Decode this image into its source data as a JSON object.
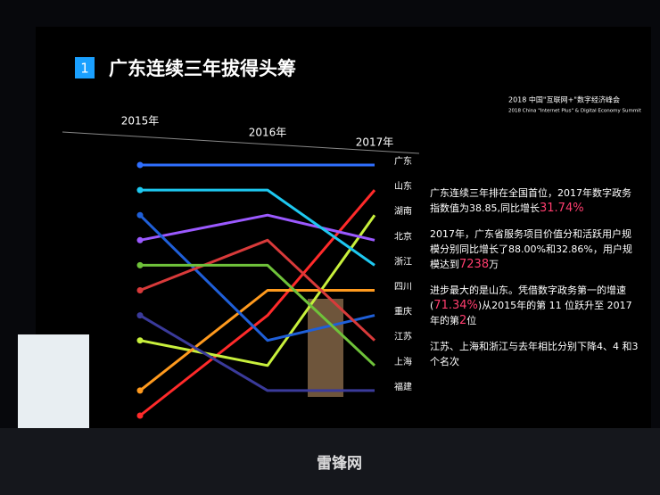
{
  "slide": {
    "badge": "1",
    "logo_cn": "2018 中国\"互联网+\"数字经济峰会",
    "logo_en": "2018 China \"Internet Plus\" & Digital Economy Summit",
    "paragraphs": [
      [
        {
          "text": "广东连续三年排在全国首位，2017年数字政务指数值为38.85,同比增长",
          "highlight": false
        },
        {
          "text": "31.74%",
          "highlight": true
        }
      ],
      [
        {
          "text": "2017年，广东省服务项目价值分和活跃用户规模分别同比增长了88.00%和32.86%，用户规模达到",
          "highlight": false
        },
        {
          "text": "7238",
          "highlight": true
        },
        {
          "text": "万",
          "highlight": false
        }
      ],
      [
        {
          "text": "进步最大的是山东。凭借数字政务第一的增速(",
          "highlight": false
        },
        {
          "text": "71.34%",
          "highlight": true
        },
        {
          "text": ")从2015年的第 11 位跃升至 2017 年的第",
          "highlight": false
        },
        {
          "text": "2",
          "highlight": true
        },
        {
          "text": "位",
          "highlight": false
        }
      ],
      [
        {
          "text": "江苏、上海和浙江与去年相比分别下降4、4 和3 个名次",
          "highlight": false
        }
      ]
    ],
    "watermark": "雷锋网"
  },
  "chart_data": {
    "type": "line",
    "title": "广东连续三年拔得头筹",
    "categories": [
      "2015年",
      "2016年",
      "2017年"
    ],
    "ylim": [
      11,
      1
    ],
    "series": [
      {
        "name": "广东",
        "color": "#2f6fff",
        "values": [
          1,
          1,
          1
        ]
      },
      {
        "name": "山东",
        "color": "#ff2a2a",
        "values": [
          11,
          7,
          2
        ]
      },
      {
        "name": "湖南",
        "color": "#c8f03c",
        "values": [
          8,
          9,
          3
        ]
      },
      {
        "name": "北京",
        "color": "#9b59ff",
        "values": [
          4,
          3,
          4
        ]
      },
      {
        "name": "浙江",
        "color": "#1ec8f0",
        "values": [
          2,
          2,
          5
        ]
      },
      {
        "name": "四川",
        "color": "#ff9a1e",
        "values": [
          10,
          6,
          6
        ]
      },
      {
        "name": "重庆",
        "color": "#1f5fd8",
        "values": [
          3,
          8,
          7
        ]
      },
      {
        "name": "江苏",
        "color": "#d83a3a",
        "values": [
          6,
          4,
          8
        ]
      },
      {
        "name": "上海",
        "color": "#6fc23a",
        "values": [
          5,
          5,
          9
        ]
      },
      {
        "name": "福建",
        "color": "#3a3a9a",
        "values": [
          7,
          10,
          10
        ]
      }
    ]
  }
}
